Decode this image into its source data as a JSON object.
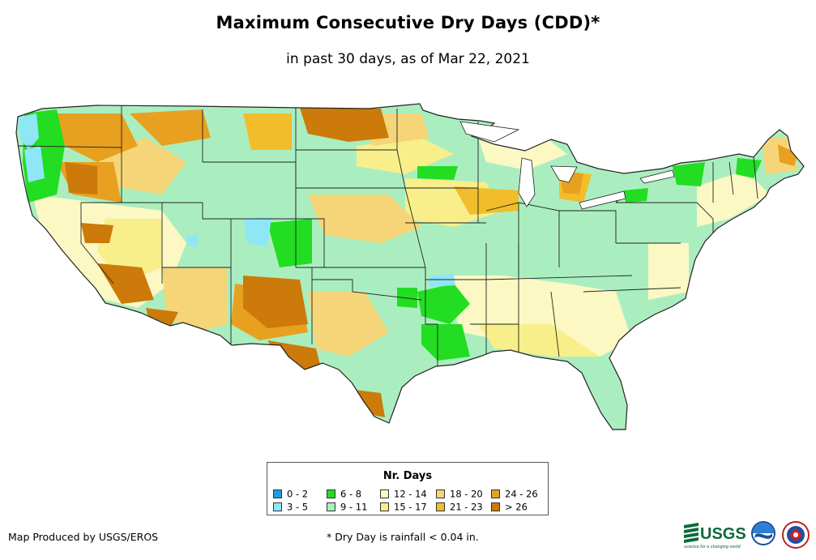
{
  "title": "Maximum Consecutive Dry Days (CDD)*",
  "subtitle": "in past 30 days, as of Mar 22, 2021",
  "legend": {
    "title": "Nr. Days",
    "items": [
      {
        "label": "0 - 2",
        "color": "#1f9be8"
      },
      {
        "label": "3 - 5",
        "color": "#8fe6f5"
      },
      {
        "label": "6 - 8",
        "color": "#22dd22"
      },
      {
        "label": "9 - 11",
        "color": "#aaeec0"
      },
      {
        "label": "12 - 14",
        "color": "#fbf8c4"
      },
      {
        "label": "15 - 17",
        "color": "#f8ee8a"
      },
      {
        "label": "18 - 20",
        "color": "#f5d577"
      },
      {
        "label": "21 - 23",
        "color": "#f2bd2a"
      },
      {
        "label": "24 - 26",
        "color": "#e8a020"
      },
      {
        "label": "> 26",
        "color": "#cc7a0a"
      }
    ]
  },
  "credit": "Map Produced by USGS/EROS",
  "footnote": "* Dry Day is rainfall < 0.04 in.",
  "logos": {
    "usgs": "USGS",
    "usgs_tagline": "science for a changing world"
  }
}
